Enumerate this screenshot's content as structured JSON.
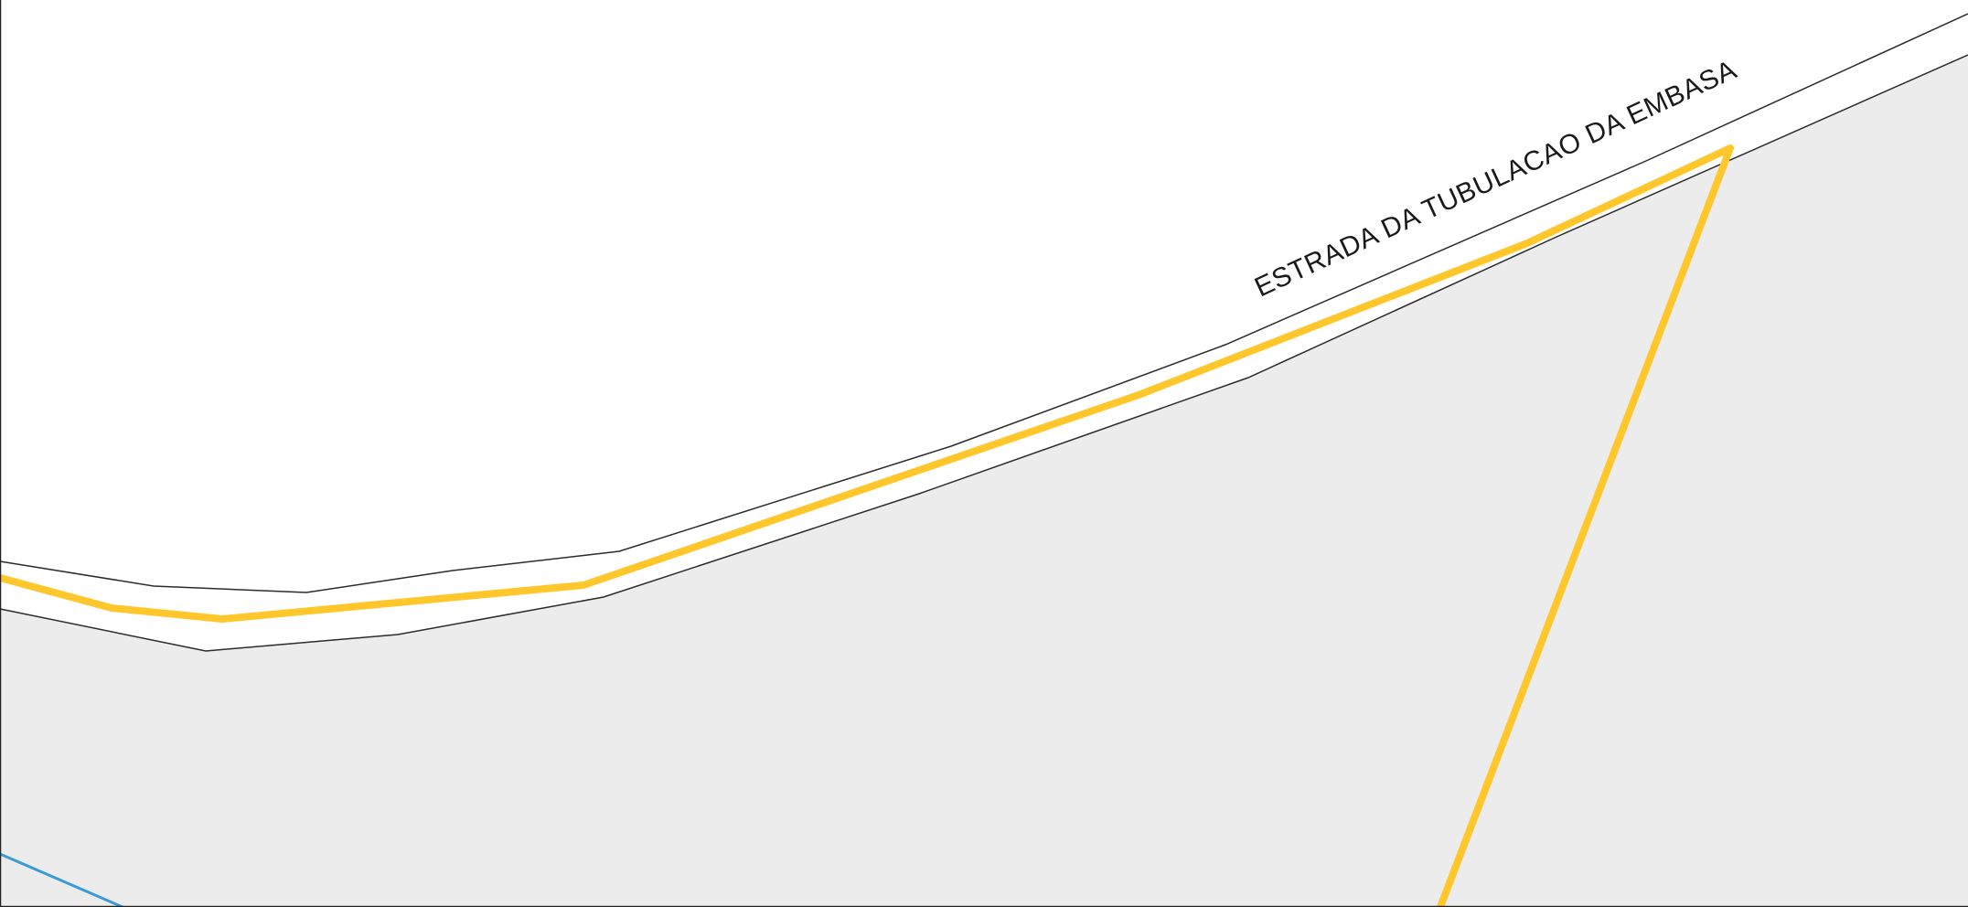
{
  "map": {
    "road_label": "ESTRADA DA TUBULACAO DA EMBASA",
    "colors": {
      "background": "#ffffff",
      "parcel_fill": "#ececec",
      "road_edge": "#2b2b2b",
      "parcel_boundary": "#ffc72c",
      "water_line": "#3a9ad9",
      "frame": "#222222",
      "label_text": "#1a1a1a"
    }
  }
}
